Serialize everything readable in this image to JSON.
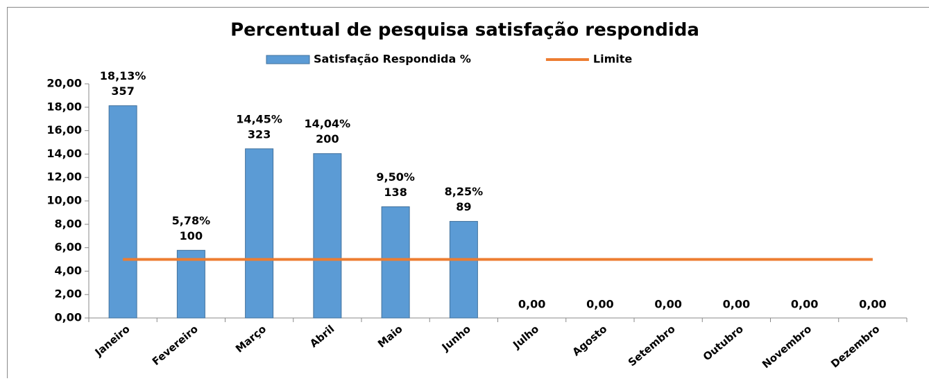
{
  "chart_data": {
    "type": "bar",
    "title": "Percentual de pesquisa satisfação respondida",
    "categories": [
      "Janeiro",
      "Fevereiro",
      "Março",
      "Abril",
      "Maio",
      "Junho",
      "Julho",
      "Agosto",
      "Setembro",
      "Outubro",
      "Novembro",
      "Dezembro"
    ],
    "series": [
      {
        "name": "Satisfação Respondida %",
        "type": "bar",
        "color": "#5b9bd5",
        "values": [
          18.13,
          5.78,
          14.45,
          14.04,
          9.5,
          8.25,
          0,
          0,
          0,
          0,
          0,
          0
        ],
        "value_labels": [
          "18,13%",
          "5,78%",
          "14,45%",
          "14,04%",
          "9,50%",
          "8,25%",
          "0,00",
          "0,00",
          "0,00",
          "0,00",
          "0,00",
          "0,00"
        ],
        "counts": [
          357,
          100,
          323,
          200,
          138,
          89,
          null,
          null,
          null,
          null,
          null,
          null
        ]
      },
      {
        "name": "Limite",
        "type": "line",
        "color": "#ed7d31",
        "values": [
          5,
          5,
          5,
          5,
          5,
          5,
          5,
          5,
          5,
          5,
          5,
          5
        ]
      }
    ],
    "ylim": [
      0,
      20
    ],
    "yticks": [
      {
        "value": 0,
        "label": "0,00"
      },
      {
        "value": 2,
        "label": "2,00"
      },
      {
        "value": 4,
        "label": "4,00"
      },
      {
        "value": 6,
        "label": "6,00"
      },
      {
        "value": 8,
        "label": "8,00"
      },
      {
        "value": 10,
        "label": "10,00"
      },
      {
        "value": 12,
        "label": "12,00"
      },
      {
        "value": 14,
        "label": "14,00"
      },
      {
        "value": 16,
        "label": "16,00"
      },
      {
        "value": 18,
        "label": "18,00"
      },
      {
        "value": 20,
        "label": "20,00"
      }
    ],
    "grid": false,
    "legend": "top"
  }
}
